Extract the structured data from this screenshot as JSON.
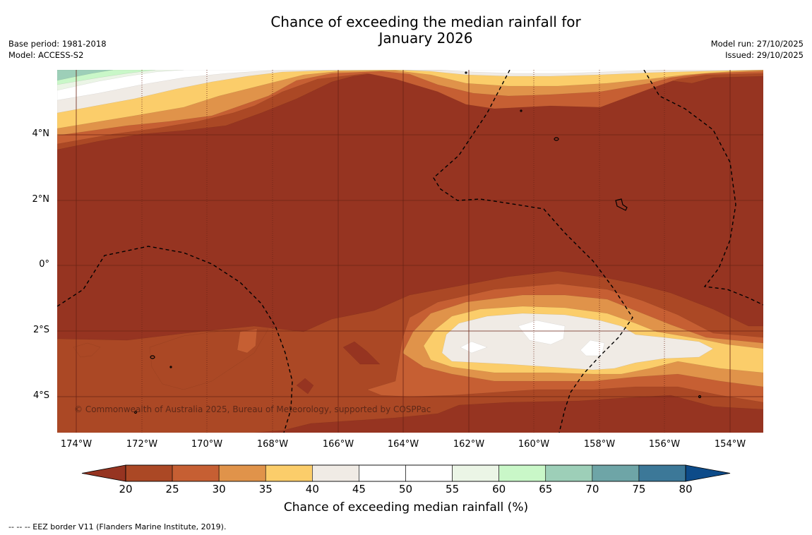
{
  "title_line1": "Chance of exceeding the median rainfall for",
  "title_line2": "January 2026",
  "base_period": "Base period: 1981-2018",
  "model": "Model: ACCESS-S2",
  "model_run": "Model run: 27/10/2025",
  "issued": "Issued: 29/10/2025",
  "copyright": "© Commonwealth of Australia 2025, Bureau of Meteorology, supported by COSPPac",
  "colorbar_title": "Chance of exceeding median rainfall (%)",
  "footnote": "--  --  -- EEZ border V11 (Flanders Marine Institute, 2019).",
  "lon_ticks": [
    "174°W",
    "172°W",
    "170°W",
    "168°W",
    "166°W",
    "164°W",
    "162°W",
    "160°W",
    "158°W",
    "156°W",
    "154°W"
  ],
  "lat_ticks": [
    "4°N",
    "2°N",
    "0°",
    "2°S",
    "4°S"
  ],
  "colorbar": {
    "ticks": [
      "20",
      "25",
      "30",
      "35",
      "40",
      "45",
      "50",
      "55",
      "60",
      "65",
      "70",
      "75",
      "80"
    ],
    "colors": [
      "#ab4825",
      "#c65f33",
      "#e0934a",
      "#fbcd6a",
      "#f0ebe5",
      "#ffffff",
      "#ffffff",
      "#ebf5e6",
      "#c9f7c8",
      "#9dcfb8",
      "#6ea5a7",
      "#3c7898"
    ],
    "under_color": "#963421",
    "over_color": "#0d4b89"
  },
  "map_colors": {
    "base": "#963421",
    "c20": "#ab4825",
    "c25": "#c65f33",
    "c30": "#e0934a",
    "c35": "#fbcd6a",
    "c40": "#f0ebe5",
    "c45": "#ffffff",
    "c55": "#ebf5e6",
    "c60": "#c9f7c8",
    "c65": "#9dcfb8"
  }
}
